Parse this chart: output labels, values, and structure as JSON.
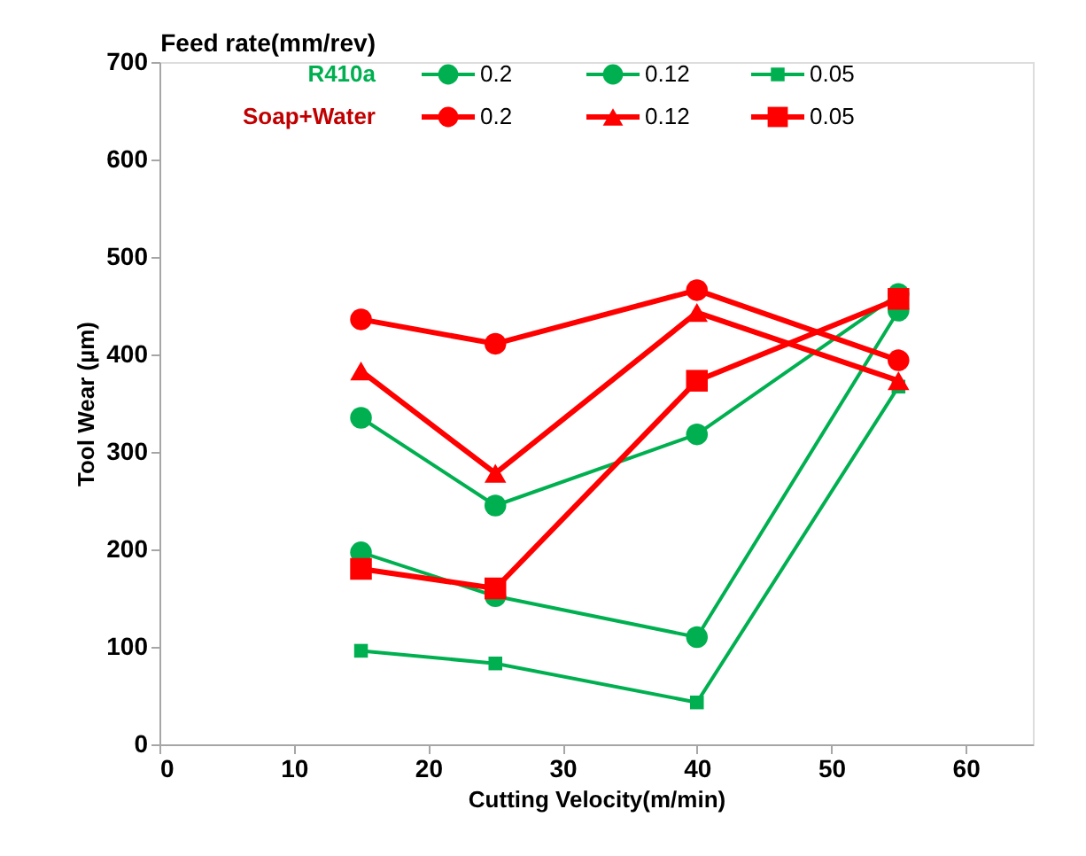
{
  "chart_data": {
    "type": "line",
    "xlabel": "Cutting Velocity(m/min)",
    "ylabel": "Tool Wear (µm)",
    "legend_title": "Feed rate(mm/rev)",
    "annotations": [
      "R410a",
      "Soap+Water"
    ],
    "x": [
      15,
      25,
      40,
      55
    ],
    "xlim": [
      0,
      65
    ],
    "xticks": [
      0,
      10,
      20,
      30,
      40,
      50,
      60
    ],
    "ylim": [
      0,
      700
    ],
    "yticks": [
      0,
      100,
      200,
      300,
      400,
      500,
      600,
      700
    ],
    "legend": "top",
    "grid": false,
    "series": [
      {
        "name": "0.2",
        "color": "#00b050",
        "marker": "circle",
        "values": [
          335,
          245,
          318,
          462
        ]
      },
      {
        "name": "0.12",
        "color": "#00b050",
        "marker": "circle",
        "values": [
          197,
          152,
          110,
          445
        ]
      },
      {
        "name": "0.05",
        "color": "#00b050",
        "marker": "square",
        "values": [
          96,
          83,
          43,
          367
        ]
      },
      {
        "name": "0.2",
        "color": "#ff0000",
        "marker": "circle",
        "values": [
          436,
          411,
          466,
          394
        ]
      },
      {
        "name": "0.12",
        "color": "#ff0000",
        "marker": "triangle",
        "values": [
          383,
          278,
          443,
          373
        ]
      },
      {
        "name": "0.05",
        "color": "#ff0000",
        "marker": "square",
        "values": [
          180,
          160,
          373,
          457
        ]
      }
    ]
  }
}
